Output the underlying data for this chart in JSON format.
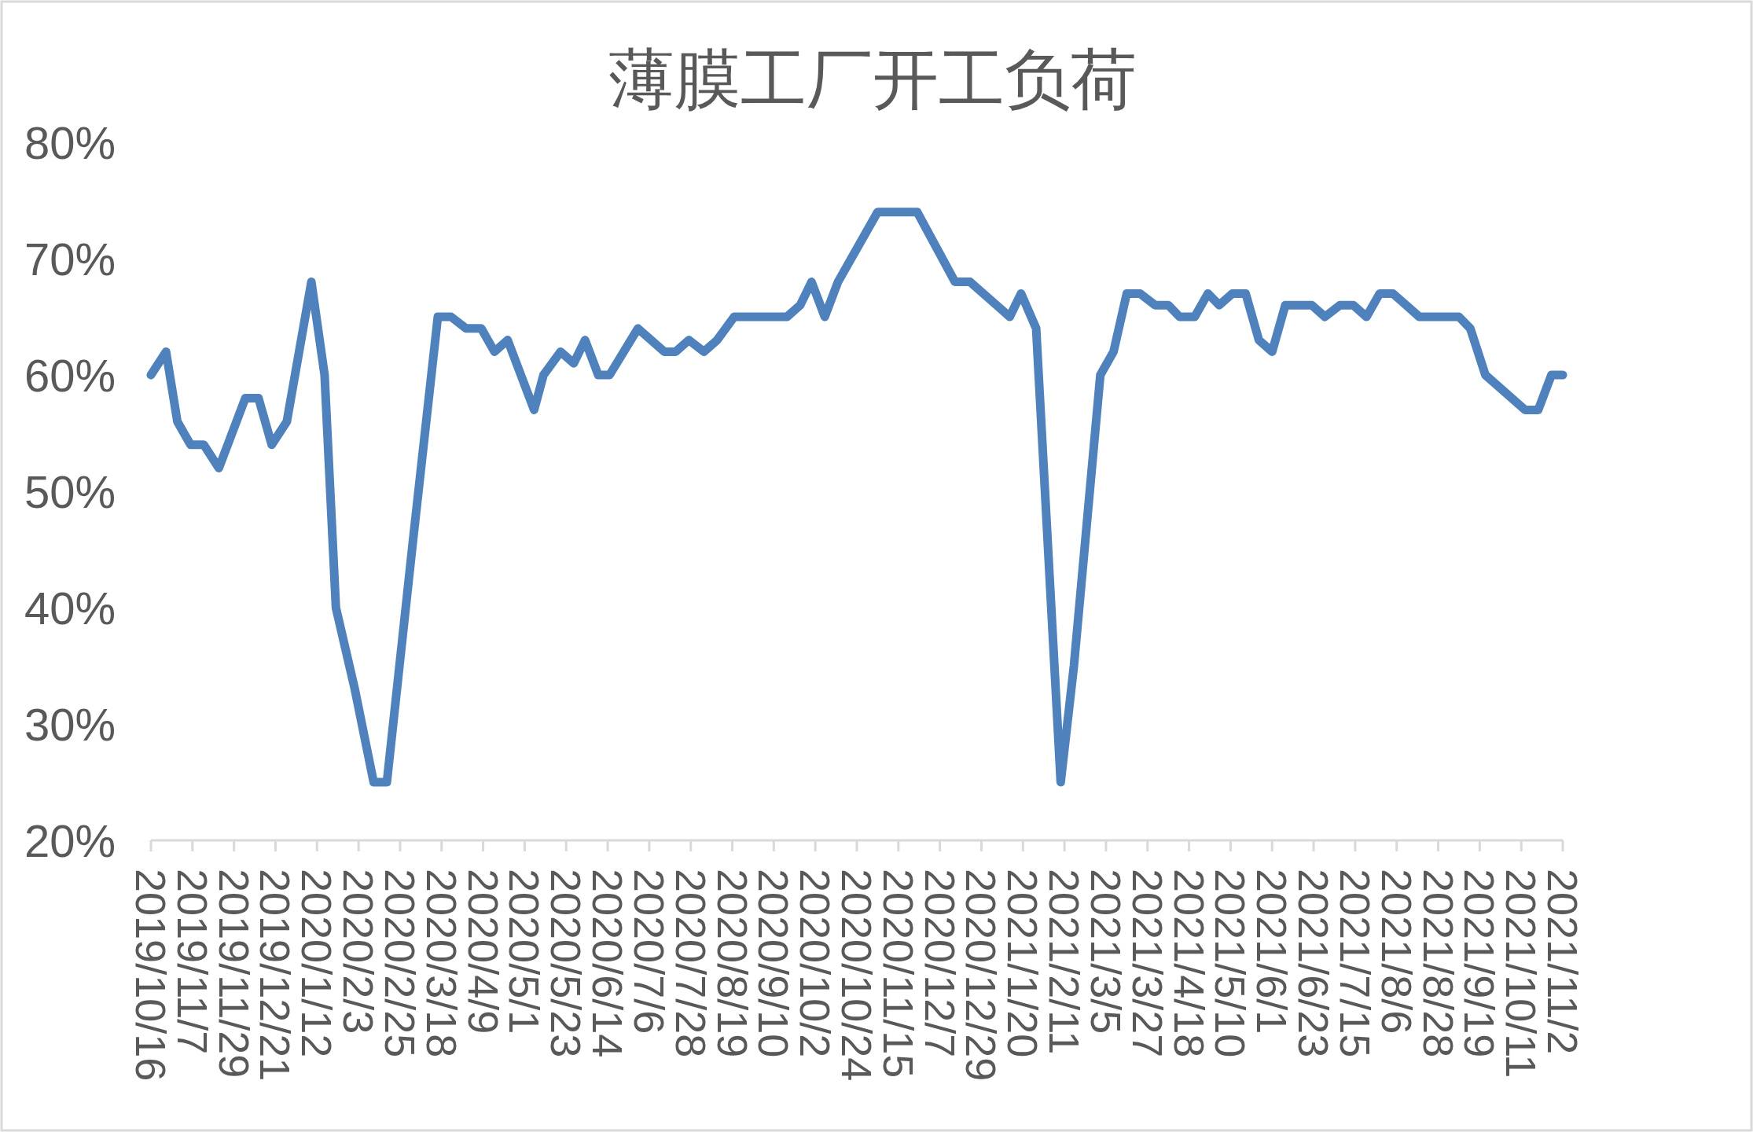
{
  "chart_data": {
    "type": "line",
    "title": "薄膜工厂开工负荷",
    "x": [
      "2019-10-16",
      "2019-10-24",
      "2019-10-30",
      "2019-11-06",
      "2019-11-13",
      "2019-11-21",
      "2019-12-05",
      "2019-12-12",
      "2019-12-19",
      "2019-12-27",
      "2020-01-09",
      "2020-01-16",
      "2020-01-22",
      "2020-02-01",
      "2020-02-11",
      "2020-02-18",
      "2020-03-03",
      "2020-03-16",
      "2020-03-23",
      "2020-03-31",
      "2020-04-08",
      "2020-04-15",
      "2020-04-22",
      "2020-05-06",
      "2020-05-11",
      "2020-05-20",
      "2020-05-27",
      "2020-06-02",
      "2020-06-09",
      "2020-06-15",
      "2020-06-30",
      "2020-07-14",
      "2020-07-20",
      "2020-07-27",
      "2020-08-04",
      "2020-08-11",
      "2020-08-20",
      "2020-09-17",
      "2020-09-24",
      "2020-09-30",
      "2020-10-07",
      "2020-10-14",
      "2020-11-04",
      "2020-11-25",
      "2020-12-15",
      "2020-12-23",
      "2021-01-13",
      "2021-01-19",
      "2021-01-27",
      "2021-02-09",
      "2021-02-16",
      "2021-03-02",
      "2021-03-09",
      "2021-03-16",
      "2021-03-23",
      "2021-03-31",
      "2021-04-07",
      "2021-04-13",
      "2021-04-21",
      "2021-04-28",
      "2021-05-04",
      "2021-05-11",
      "2021-05-18",
      "2021-05-25",
      "2021-06-01",
      "2021-06-08",
      "2021-06-14",
      "2021-06-22",
      "2021-06-29",
      "2021-07-07",
      "2021-07-14",
      "2021-07-21",
      "2021-07-28",
      "2021-08-04",
      "2021-08-11",
      "2021-08-18",
      "2021-09-08",
      "2021-09-14",
      "2021-09-22",
      "2021-10-13",
      "2021-10-20",
      "2021-10-27",
      "2021-11-02"
    ],
    "series": [
      {
        "color": "#4f81bd",
        "values": [
          60,
          62,
          56,
          54,
          54,
          52,
          58,
          58,
          54,
          56,
          68,
          60,
          40,
          33,
          25,
          25,
          46,
          65,
          65,
          64,
          64,
          62,
          63,
          57,
          60,
          62,
          61,
          63,
          60,
          60,
          64,
          62,
          62,
          63,
          62,
          63,
          65,
          65,
          66,
          68,
          65,
          68,
          74,
          74,
          68,
          68,
          65,
          67,
          64,
          25,
          35,
          60,
          62,
          67,
          67,
          66,
          66,
          65,
          65,
          67,
          66,
          67,
          67,
          63,
          62,
          66,
          66,
          66,
          65,
          66,
          66,
          65,
          67,
          67,
          66,
          65,
          65,
          64,
          60,
          57,
          57,
          60,
          60
        ]
      }
    ],
    "xlim": [
      "2019-10-16",
      "2021-11-02"
    ],
    "xticks": [
      {
        "value": "2019-10-16",
        "label": "2019/10/16"
      },
      {
        "value": "2019-11-07",
        "label": "2019/11/7"
      },
      {
        "value": "2019-11-29",
        "label": "2019/11/29"
      },
      {
        "value": "2019-12-21",
        "label": "2019/12/21"
      },
      {
        "value": "2020-01-12",
        "label": "2020/1/12"
      },
      {
        "value": "2020-02-03",
        "label": "2020/2/3"
      },
      {
        "value": "2020-02-25",
        "label": "2020/2/25"
      },
      {
        "value": "2020-03-18",
        "label": "2020/3/18"
      },
      {
        "value": "2020-04-09",
        "label": "2020/4/9"
      },
      {
        "value": "2020-05-01",
        "label": "2020/5/1"
      },
      {
        "value": "2020-05-23",
        "label": "2020/5/23"
      },
      {
        "value": "2020-06-14",
        "label": "2020/6/14"
      },
      {
        "value": "2020-07-06",
        "label": "2020/7/6"
      },
      {
        "value": "2020-07-28",
        "label": "2020/7/28"
      },
      {
        "value": "2020-08-19",
        "label": "2020/8/19"
      },
      {
        "value": "2020-09-10",
        "label": "2020/9/10"
      },
      {
        "value": "2020-10-02",
        "label": "2020/10/2"
      },
      {
        "value": "2020-10-24",
        "label": "2020/10/24"
      },
      {
        "value": "2020-11-15",
        "label": "2020/11/15"
      },
      {
        "value": "2020-12-07",
        "label": "2020/12/7"
      },
      {
        "value": "2020-12-29",
        "label": "2020/12/29"
      },
      {
        "value": "2021-01-20",
        "label": "2021/1/20"
      },
      {
        "value": "2021-02-11",
        "label": "2021/2/11"
      },
      {
        "value": "2021-03-05",
        "label": "2021/3/5"
      },
      {
        "value": "2021-03-27",
        "label": "2021/3/27"
      },
      {
        "value": "2021-04-18",
        "label": "2021/4/18"
      },
      {
        "value": "2021-05-10",
        "label": "2021/5/10"
      },
      {
        "value": "2021-06-01",
        "label": "2021/6/1"
      },
      {
        "value": "2021-06-23",
        "label": "2021/6/23"
      },
      {
        "value": "2021-07-15",
        "label": "2021/7/15"
      },
      {
        "value": "2021-08-06",
        "label": "2021/8/6"
      },
      {
        "value": "2021-08-28",
        "label": "2021/8/28"
      },
      {
        "value": "2021-09-19",
        "label": "2021/9/19"
      },
      {
        "value": "2021-10-11",
        "label": "2021/10/11"
      },
      {
        "value": "2021-11-02",
        "label": "2021/11/2"
      }
    ],
    "ylim": [
      20,
      80
    ],
    "yticks": [
      {
        "value": 20,
        "label": "20%"
      },
      {
        "value": 30,
        "label": "30%"
      },
      {
        "value": 40,
        "label": "40%"
      },
      {
        "value": 50,
        "label": "50%"
      },
      {
        "value": 60,
        "label": "60%"
      },
      {
        "value": 70,
        "label": "70%"
      },
      {
        "value": 80,
        "label": "80%"
      }
    ],
    "grid": false,
    "marker": "none",
    "line_style": "solid"
  }
}
